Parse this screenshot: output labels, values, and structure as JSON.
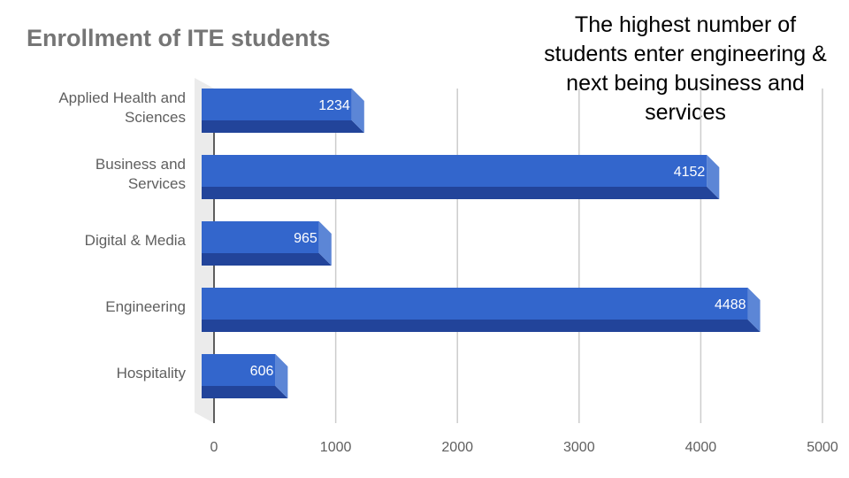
{
  "chart_data": {
    "type": "bar",
    "orientation": "horizontal",
    "title": "Enrollment of ITE students",
    "categories": [
      [
        "Applied Health and",
        "Sciences"
      ],
      [
        "Business and",
        "Services"
      ],
      [
        "Digital & Media"
      ],
      [
        "Engineering"
      ],
      [
        "Hospitality"
      ]
    ],
    "values": [
      1234,
      4152,
      965,
      4488,
      606
    ],
    "data_labels": [
      "1234",
      "4152",
      "965",
      "4488",
      "606"
    ],
    "x_ticks": [
      "0",
      "1000",
      "2000",
      "3000",
      "4000",
      "5000"
    ],
    "xlim": [
      0,
      5000
    ],
    "xlabel": "",
    "ylabel": "",
    "grid": true,
    "style": "3d",
    "colors": {
      "bar_front": "#3366cc",
      "bar_bottom": "#22449a",
      "bar_side": "#5c86d6",
      "grid": "#cccccc",
      "floor": "#ebebeb"
    }
  },
  "annotation": {
    "lines": [
      "The highest number of",
      "students enter engineering &",
      "next being business and",
      "services"
    ]
  }
}
